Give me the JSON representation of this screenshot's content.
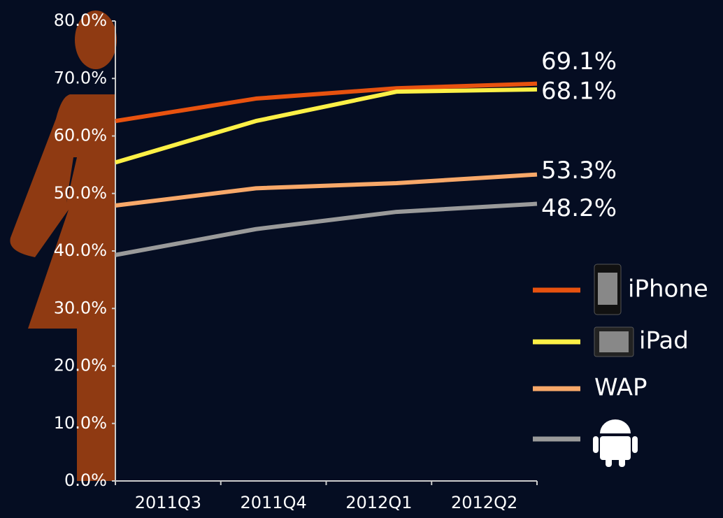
{
  "chart_data": {
    "type": "line",
    "categories": [
      "2011Q3",
      "2011Q4",
      "2012Q1",
      "2012Q2"
    ],
    "series": [
      {
        "name": "iPhone",
        "color": "#e8520f",
        "values": [
          62.6,
          66.5,
          68.3,
          69.1
        ],
        "value_labels": [
          null,
          null,
          null,
          "69.1%"
        ]
      },
      {
        "name": "iPad",
        "color": "#fdf046",
        "values": [
          55.4,
          62.6,
          67.7,
          68.1
        ],
        "value_labels": [
          null,
          null,
          null,
          "68.1%"
        ]
      },
      {
        "name": "WAP",
        "color": "#f8a869",
        "values": [
          47.9,
          50.9,
          51.8,
          53.3
        ],
        "value_labels": [
          null,
          null,
          null,
          "53.3%"
        ]
      },
      {
        "color": "#9a9a9a",
        "values": [
          39.3,
          43.8,
          46.8,
          48.2
        ],
        "value_labels": [
          null,
          null,
          null,
          "48.2%"
        ]
      }
    ],
    "ylim": [
      0,
      80
    ],
    "yticks": [
      {
        "value": 0,
        "label": "0.0%"
      },
      {
        "value": 10,
        "label": "10.0%"
      },
      {
        "value": 20,
        "label": "20.0%"
      },
      {
        "value": 30,
        "label": "30.0%"
      },
      {
        "value": 40,
        "label": "40.0%"
      },
      {
        "value": 50,
        "label": "50.0%"
      },
      {
        "value": 60,
        "label": "60.0%"
      },
      {
        "value": 70,
        "label": "70.0%"
      },
      {
        "value": 80,
        "label": "80.0%"
      }
    ],
    "grid": false
  }
}
